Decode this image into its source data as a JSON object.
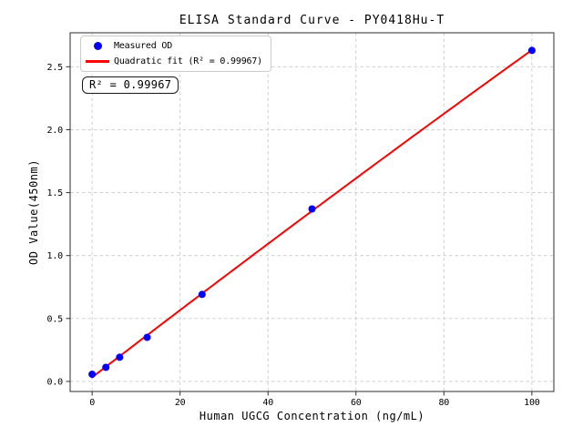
{
  "chart_data": {
    "type": "scatter",
    "title": "ELISA Standard Curve - PY0418Hu-T",
    "xlabel": "Human UGCG Concentration (ng/mL)",
    "ylabel": "OD Value(450nm)",
    "x": [
      0,
      3.125,
      6.25,
      12.5,
      25,
      50,
      100
    ],
    "y": [
      0.057,
      0.112,
      0.192,
      0.35,
      0.691,
      1.37,
      2.63
    ],
    "series": [
      {
        "name": "Measured OD",
        "type": "scatter",
        "color": "#0000ff"
      },
      {
        "name": "Quadratic fit (R² = 0.99967)",
        "type": "line",
        "color": "#ff0000"
      }
    ],
    "xlim": [
      -5,
      105
    ],
    "ylim": [
      -0.08,
      2.77
    ],
    "x_ticks": [
      0,
      20,
      40,
      60,
      80,
      100
    ],
    "y_ticks": [
      0,
      0.5,
      1,
      1.5,
      2,
      2.5
    ],
    "grid": true,
    "legend_position": "upper-left",
    "annotation": {
      "label": "R² = 0.99967",
      "r_squared": 0.99967
    }
  },
  "colors": {
    "point": "#0000ff",
    "fit_line": "#ff0000",
    "grid": "#c9c9c9",
    "spine": "#2e2e2e",
    "background": "#ffffff",
    "text": "#000000"
  }
}
